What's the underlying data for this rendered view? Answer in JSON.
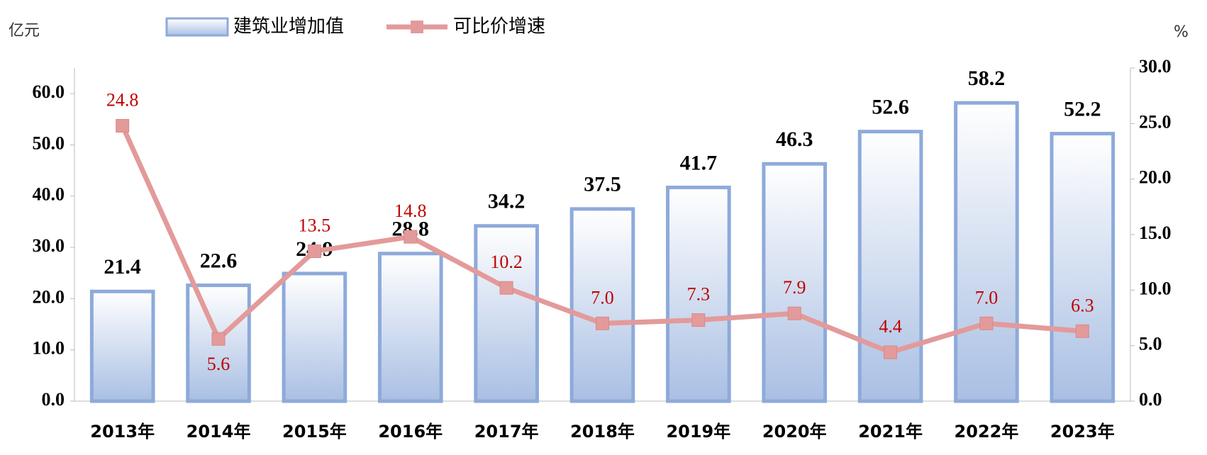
{
  "chart_data": {
    "type": "bar_line",
    "y_axis_label": "亿元",
    "y2_axis_label": "%",
    "categories": [
      "2013年",
      "2014年",
      "2015年",
      "2016年",
      "2017年",
      "2018年",
      "2019年",
      "2020年",
      "2021年",
      "2022年",
      "2023年"
    ],
    "series": [
      {
        "name": "建筑业增加值",
        "type": "bar",
        "color": "#8eaadb",
        "values": [
          21.4,
          22.6,
          24.9,
          28.8,
          34.2,
          37.5,
          41.7,
          46.3,
          52.6,
          58.2,
          52.2
        ]
      },
      {
        "name": "可比价增速",
        "type": "line",
        "axis": "y2",
        "color": "#e39a9a",
        "values": [
          24.8,
          5.6,
          13.5,
          14.8,
          10.2,
          7.0,
          7.3,
          7.9,
          4.4,
          7.0,
          6.3
        ],
        "value_labels": [
          "24.8",
          "5.6",
          "13.5",
          "14.8",
          "10.2",
          "7.0",
          "7.3",
          "7.9",
          "4.4",
          "7.0",
          "6.3"
        ]
      }
    ],
    "ylim": [
      0,
      65
    ],
    "yticks": [
      {
        "value": 0,
        "label": "0.0"
      },
      {
        "value": 10,
        "label": "10.0"
      },
      {
        "value": 20,
        "label": "20.0"
      },
      {
        "value": 30,
        "label": "30.0"
      },
      {
        "value": 40,
        "label": "40.0"
      },
      {
        "value": 50,
        "label": "50.0"
      },
      {
        "value": 60,
        "label": "60.0"
      }
    ],
    "y2lim": [
      0,
      30
    ],
    "y2ticks": [
      {
        "value": 0,
        "label": "0.0"
      },
      {
        "value": 5,
        "label": "5.0"
      },
      {
        "value": 10,
        "label": "10.0"
      },
      {
        "value": 15,
        "label": "15.0"
      },
      {
        "value": 20,
        "label": "20.0"
      },
      {
        "value": 25,
        "label": "25.0"
      },
      {
        "value": 30,
        "label": "30.0"
      }
    ]
  }
}
